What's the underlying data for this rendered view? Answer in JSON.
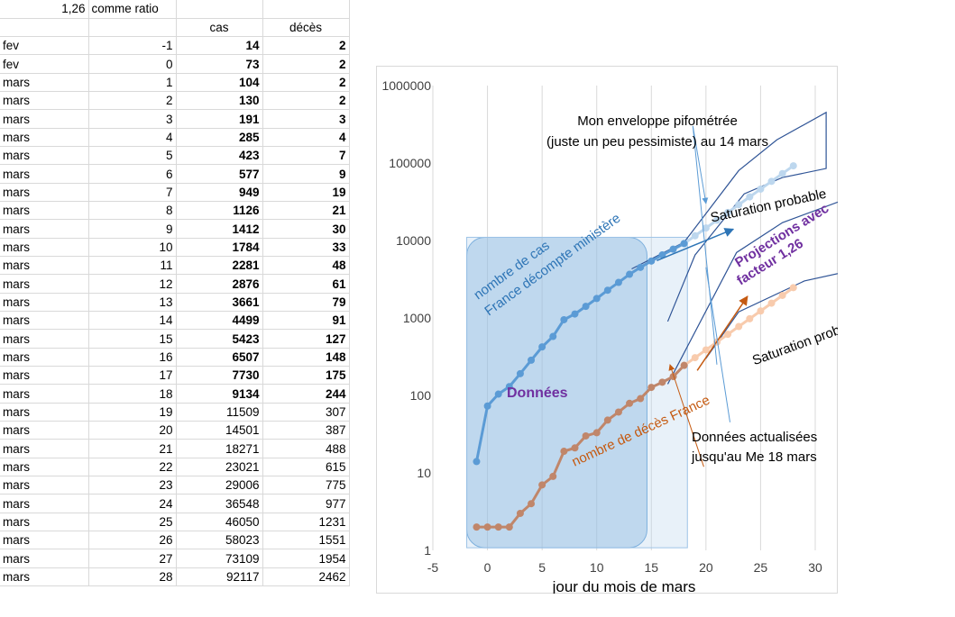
{
  "sheet": {
    "ratio_value": "1,26",
    "ratio_label": "comme ratio",
    "col_cas": "cas",
    "col_deces": "décès",
    "bold_rows": 20,
    "rows": [
      {
        "m": "fev",
        "d": "-1",
        "c": "14",
        "k": "2"
      },
      {
        "m": "fev",
        "d": "0",
        "c": "73",
        "k": "2"
      },
      {
        "m": "mars",
        "d": "1",
        "c": "104",
        "k": "2"
      },
      {
        "m": "mars",
        "d": "2",
        "c": "130",
        "k": "2"
      },
      {
        "m": "mars",
        "d": "3",
        "c": "191",
        "k": "3"
      },
      {
        "m": "mars",
        "d": "4",
        "c": "285",
        "k": "4"
      },
      {
        "m": "mars",
        "d": "5",
        "c": "423",
        "k": "7"
      },
      {
        "m": "mars",
        "d": "6",
        "c": "577",
        "k": "9"
      },
      {
        "m": "mars",
        "d": "7",
        "c": "949",
        "k": "19"
      },
      {
        "m": "mars",
        "d": "8",
        "c": "1126",
        "k": "21"
      },
      {
        "m": "mars",
        "d": "9",
        "c": "1412",
        "k": "30"
      },
      {
        "m": "mars",
        "d": "10",
        "c": "1784",
        "k": "33"
      },
      {
        "m": "mars",
        "d": "11",
        "c": "2281",
        "k": "48"
      },
      {
        "m": "mars",
        "d": "12",
        "c": "2876",
        "k": "61"
      },
      {
        "m": "mars",
        "d": "13",
        "c": "3661",
        "k": "79"
      },
      {
        "m": "mars",
        "d": "14",
        "c": "4499",
        "k": "91"
      },
      {
        "m": "mars",
        "d": "15",
        "c": "5423",
        "k": "127"
      },
      {
        "m": "mars",
        "d": "16",
        "c": "6507",
        "k": "148"
      },
      {
        "m": "mars",
        "d": "17",
        "c": "7730",
        "k": "175"
      },
      {
        "m": "mars",
        "d": "18",
        "c": "9134",
        "k": "244"
      },
      {
        "m": "mars",
        "d": "19",
        "c": "11509",
        "k": "307"
      },
      {
        "m": "mars",
        "d": "20",
        "c": "14501",
        "k": "387"
      },
      {
        "m": "mars",
        "d": "21",
        "c": "18271",
        "k": "488"
      },
      {
        "m": "mars",
        "d": "22",
        "c": "23021",
        "k": "615"
      },
      {
        "m": "mars",
        "d": "23",
        "c": "29006",
        "k": "775"
      },
      {
        "m": "mars",
        "d": "24",
        "c": "36548",
        "k": "977"
      },
      {
        "m": "mars",
        "d": "25",
        "c": "46050",
        "k": "1231"
      },
      {
        "m": "mars",
        "d": "26",
        "c": "58023",
        "k": "1551"
      },
      {
        "m": "mars",
        "d": "27",
        "c": "73109",
        "k": "1954"
      },
      {
        "m": "mars",
        "d": "28",
        "c": "92117",
        "k": "2462"
      }
    ]
  },
  "chart_data": {
    "type": "line",
    "xlabel": "jour du mois de mars",
    "y_scale": "log",
    "xlim": [
      -5,
      30
    ],
    "ylim": [
      1,
      1000000
    ],
    "x_ticks": [
      "-5",
      "0",
      "5",
      "10",
      "15",
      "20",
      "25",
      "30"
    ],
    "y_ticks": [
      "1",
      "10",
      "100",
      "1000",
      "10000",
      "100000",
      "1000000"
    ],
    "grid": "vertical",
    "x": [
      -1,
      0,
      1,
      2,
      3,
      4,
      5,
      6,
      7,
      8,
      9,
      10,
      11,
      12,
      13,
      14,
      15,
      16,
      17,
      18,
      19,
      20,
      21,
      22,
      23,
      24,
      25,
      26,
      27,
      28
    ],
    "series": [
      {
        "values": [
          14,
          73,
          104,
          130,
          191,
          285,
          423,
          577,
          949,
          1126,
          1412,
          1784,
          2281,
          2876,
          3661,
          4499,
          5423,
          6507,
          7730,
          9134,
          11509,
          14501,
          18271,
          23021,
          29006,
          36548,
          46050,
          58023,
          73109,
          92117
        ],
        "data_until_x": 18,
        "color": "#5b9bd5",
        "projection_color": "#bdd7ee"
      },
      {
        "values": [
          2,
          2,
          2,
          2,
          3,
          4,
          7,
          9,
          19,
          21,
          30,
          33,
          48,
          61,
          79,
          91,
          127,
          148,
          175,
          244,
          307,
          387,
          488,
          615,
          775,
          977,
          1231,
          1551,
          1954,
          2462
        ],
        "data_until_x": 18,
        "color": "#c0866a",
        "projection_color": "#f8cbad"
      }
    ],
    "annotations": {
      "envelope": "Mon enveloppe pifométrée",
      "envelope_2": "(juste un peu pessimiste) au 14 mars",
      "saturation_1": "Saturation probable",
      "saturation_2": "Saturation probable",
      "projections_1": "Projections avec",
      "projections_2": "facteur 1,26",
      "cases_1": "nombre de cas",
      "cases_2": "France décompte ministère",
      "donnees": "Données",
      "deces": "nombre de décès France",
      "updated_1": "Données actualisées",
      "updated_2": "jusqu'au Me 18 mars"
    },
    "colors": {
      "blue_label": "#2e75b6",
      "purple": "#7030a0",
      "brown": "#c55a11",
      "envelope": "#2f5496"
    }
  }
}
